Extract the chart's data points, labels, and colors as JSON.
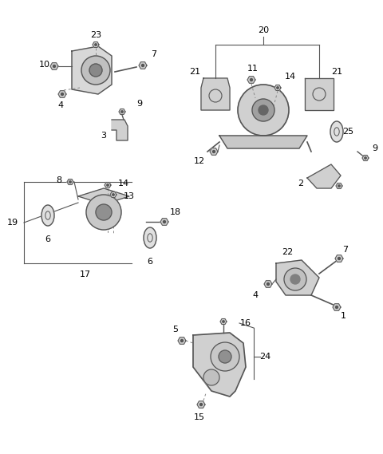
{
  "bg_color": "#ffffff",
  "line_color": "#555555",
  "text_color": "#000000",
  "fig_width": 4.8,
  "fig_height": 5.69,
  "dpi": 100
}
